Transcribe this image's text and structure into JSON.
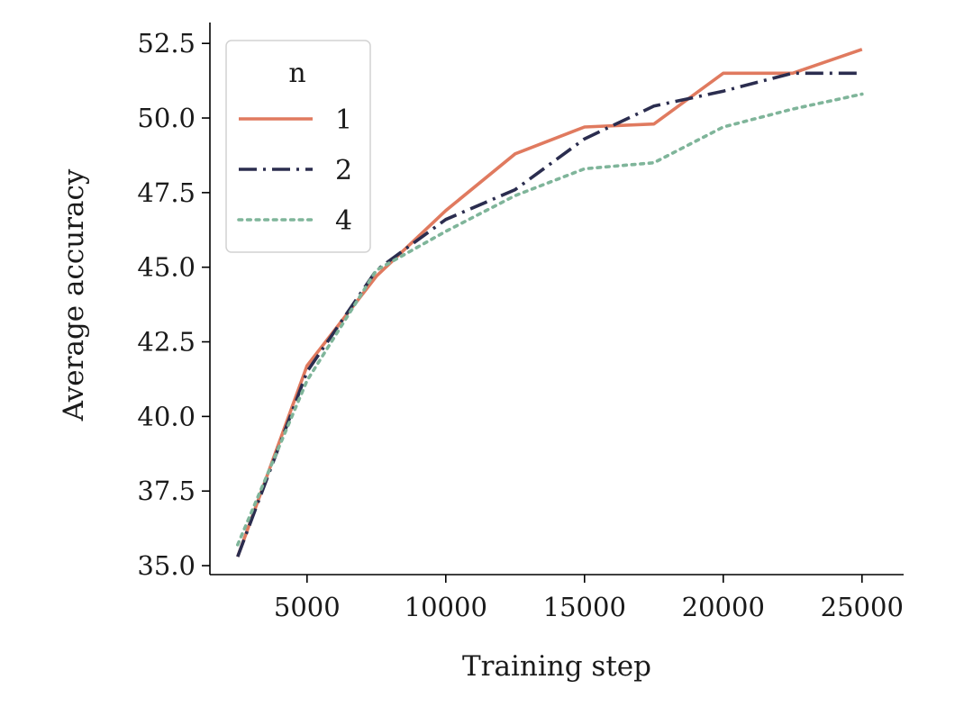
{
  "chart_data": {
    "type": "line",
    "title": "",
    "xlabel": "Training step",
    "ylabel": "Average accuracy",
    "xlim": [
      1500,
      26500
    ],
    "ylim": [
      34.7,
      53.2
    ],
    "xticks": [
      5000,
      10000,
      15000,
      20000,
      25000
    ],
    "xtick_labels": [
      "5000",
      "10000",
      "15000",
      "20000",
      "25000"
    ],
    "yticks": [
      35.0,
      37.5,
      40.0,
      42.5,
      45.0,
      47.5,
      50.0,
      52.5
    ],
    "ytick_labels": [
      "35.0",
      "37.5",
      "40.0",
      "42.5",
      "45.0",
      "47.5",
      "50.0",
      "52.5"
    ],
    "grid": false,
    "legend": {
      "title": "n",
      "placement": "top-left"
    },
    "x": [
      2500,
      5000,
      7500,
      10000,
      12500,
      15000,
      17500,
      20000,
      22500,
      25000
    ],
    "series": [
      {
        "name": "1",
        "color": "#e07a5f",
        "dash": "solid",
        "values": [
          35.3,
          41.7,
          44.7,
          46.9,
          48.8,
          49.7,
          49.8,
          51.5,
          51.5,
          52.3
        ]
      },
      {
        "name": "2",
        "color": "#2b2d4f",
        "dash": "dashdot",
        "values": [
          35.3,
          41.5,
          44.9,
          46.6,
          47.6,
          49.3,
          50.4,
          50.9,
          51.5,
          51.5
        ]
      },
      {
        "name": "4",
        "color": "#7fb59a",
        "dash": "dotted",
        "values": [
          35.7,
          41.2,
          44.9,
          46.2,
          47.4,
          48.3,
          48.5,
          49.7,
          50.3,
          50.8
        ]
      }
    ]
  }
}
